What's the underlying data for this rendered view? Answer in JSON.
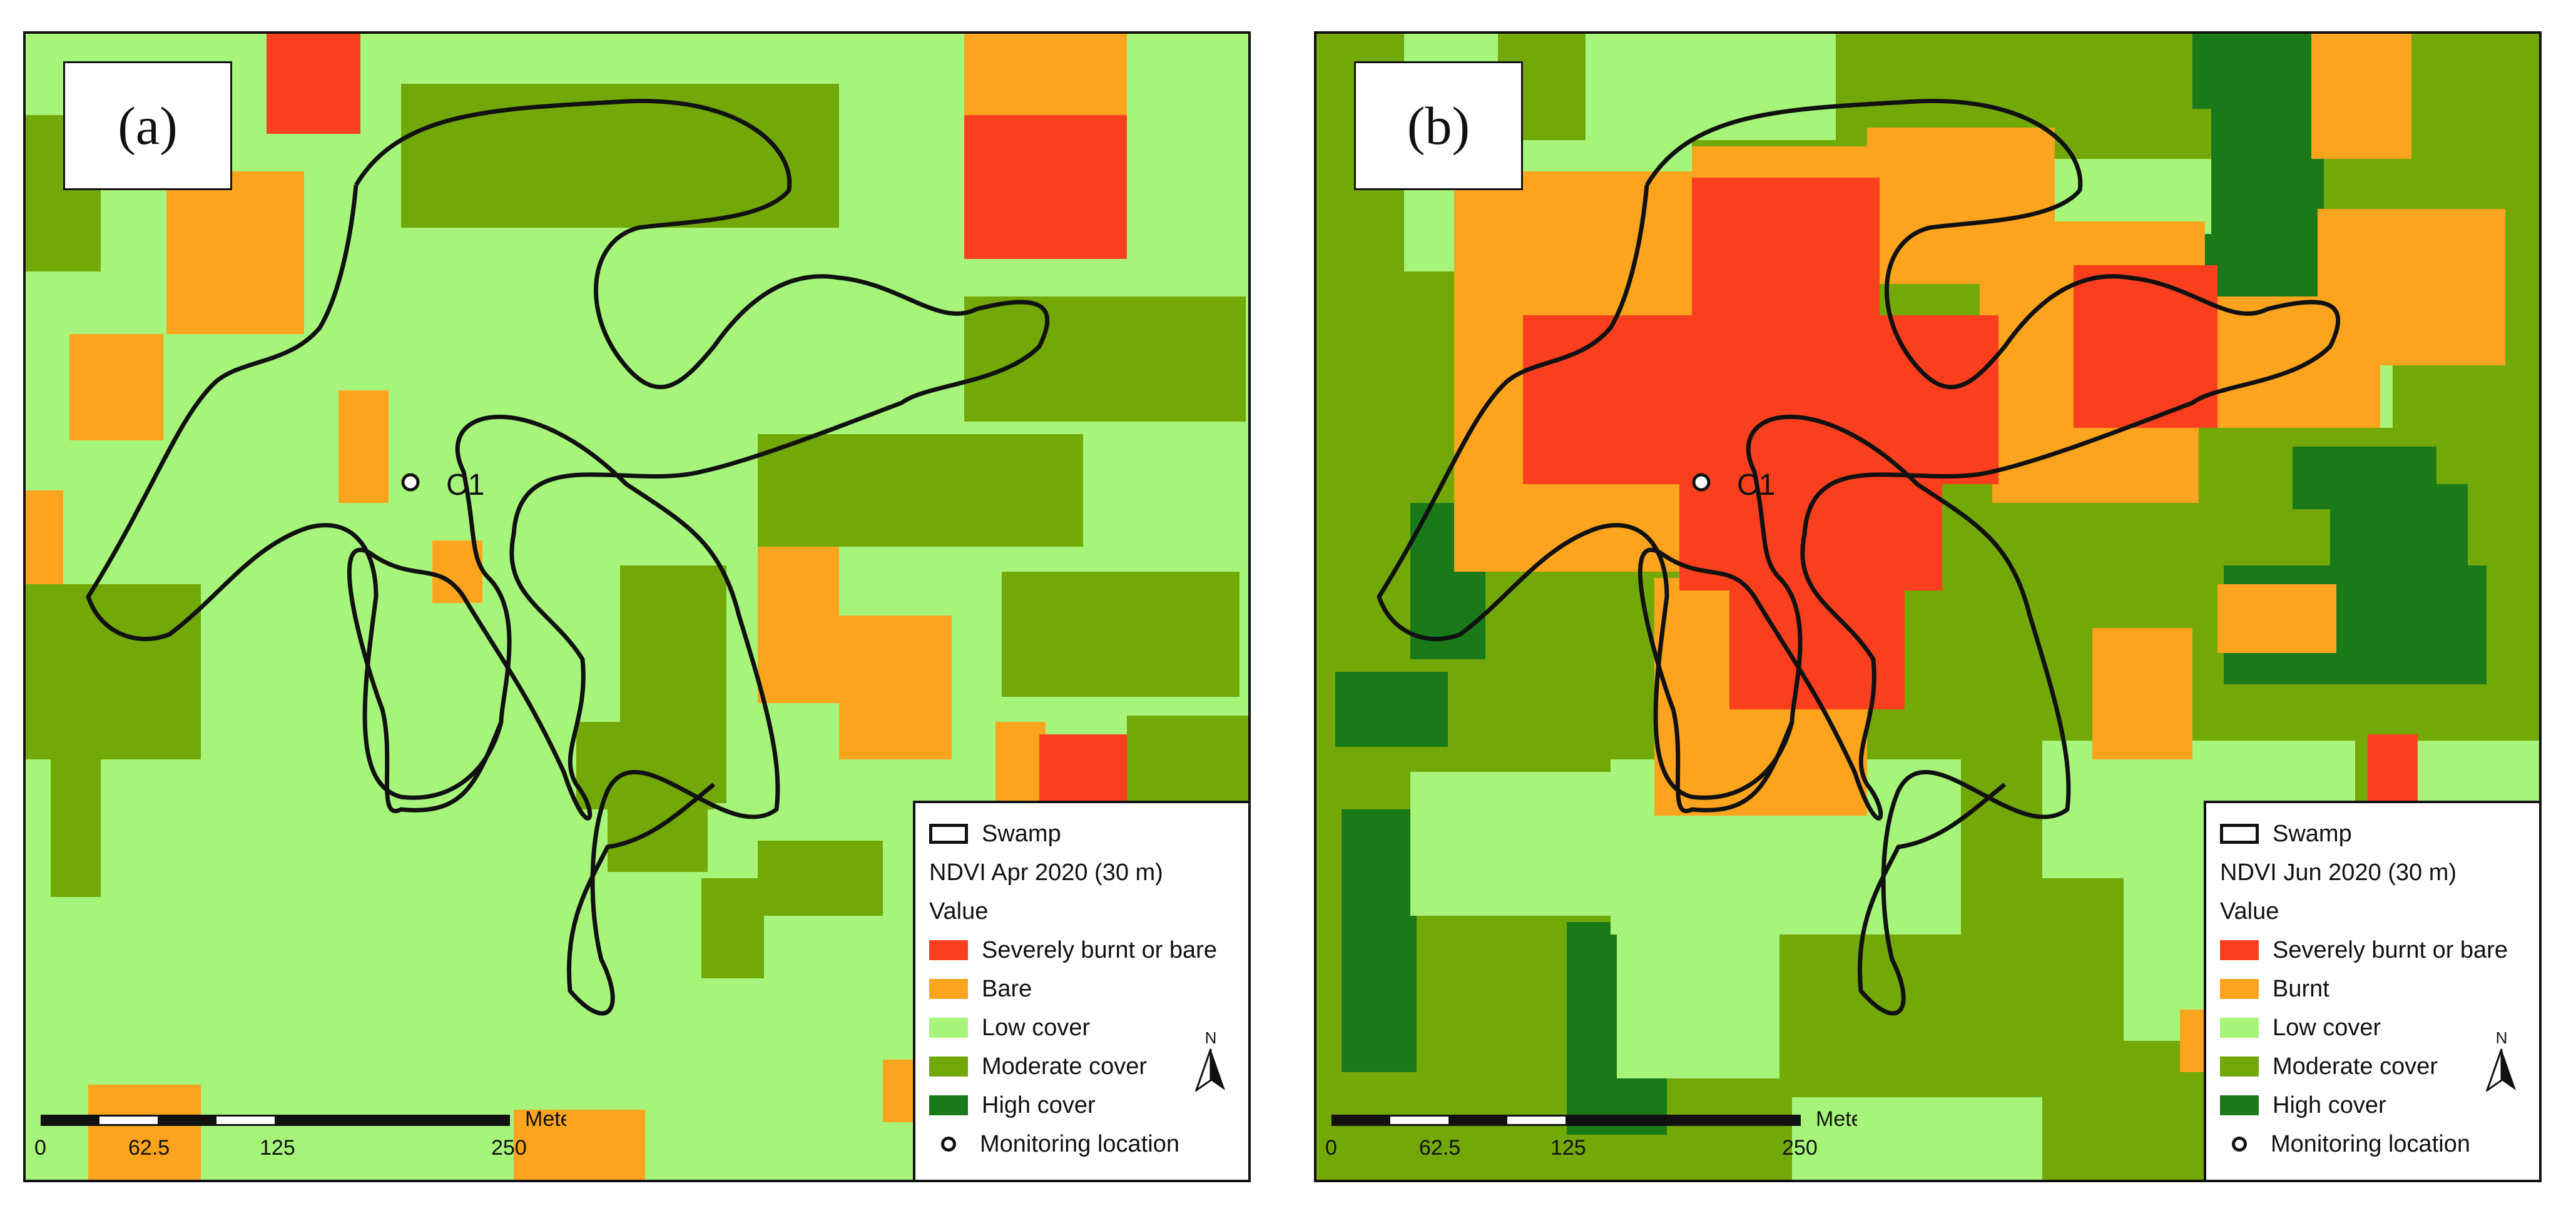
{
  "colors": {
    "severely_burnt_or_bare": "#fa3f1f",
    "bare": "#fca41d",
    "burnt": "#fca41d",
    "low_cover": "#a6f57a",
    "moderate_cover": "#72a808",
    "high_cover": "#1a7a1a",
    "swamp_outline": "#111111"
  },
  "panels": [
    {
      "id": "a",
      "label": "(a)",
      "site_label": "C1",
      "legend": {
        "swamp": "Swamp",
        "layer_title": "NDVI Apr 2020 (30 m)",
        "value_heading": "Value",
        "classes": [
          {
            "label": "Severely burnt or bare",
            "color": "#fa3f1f"
          },
          {
            "label": "Bare",
            "color": "#fca41d"
          },
          {
            "label": "Low cover",
            "color": "#a6f57a"
          },
          {
            "label": "Moderate cover",
            "color": "#72a808"
          },
          {
            "label": "High cover",
            "color": "#1a7a1a"
          }
        ],
        "marker_label": "Monitoring location",
        "north": "N"
      },
      "scale": {
        "units": "Meters",
        "ticks": [
          "0",
          "62.5",
          "125",
          "250"
        ]
      }
    },
    {
      "id": "b",
      "label": "(b)",
      "site_label": "C1",
      "legend": {
        "swamp": "Swamp",
        "layer_title": "NDVI Jun 2020 (30 m)",
        "value_heading": "Value",
        "classes": [
          {
            "label": "Severely burnt or bare",
            "color": "#fa3f1f"
          },
          {
            "label": "Burnt",
            "color": "#fca41d"
          },
          {
            "label": "Low cover",
            "color": "#a6f57a"
          },
          {
            "label": "Moderate cover",
            "color": "#72a808"
          },
          {
            "label": "High cover",
            "color": "#1a7a1a"
          }
        ],
        "marker_label": "Monitoring location",
        "north": "N"
      },
      "scale": {
        "units": "Meters",
        "ticks": [
          "0",
          "62.5",
          "125",
          "250"
        ]
      }
    }
  ]
}
